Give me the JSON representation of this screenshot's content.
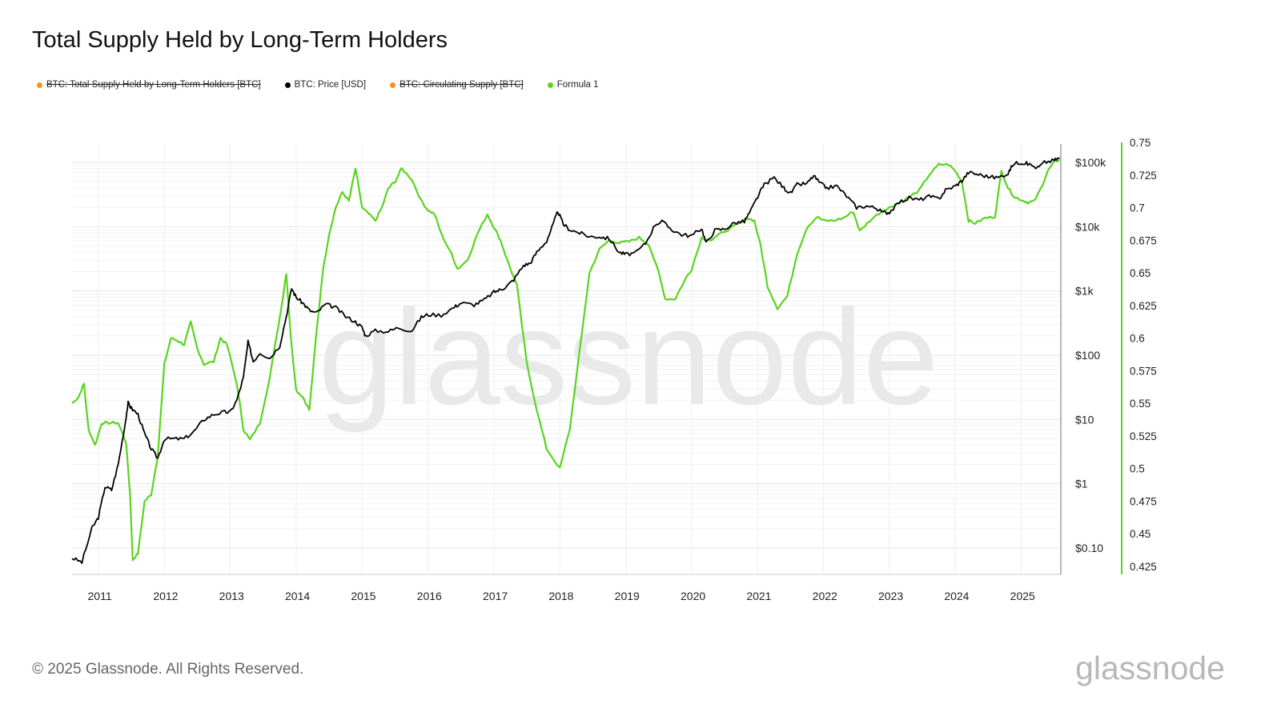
{
  "title": "Total Supply Held by Long-Term Holders",
  "legend": [
    {
      "label": "BTC: Total Supply Held by Long-Term Holders [BTC]",
      "color": "#f7931a",
      "active": false
    },
    {
      "label": "BTC: Price [USD]",
      "color": "#000000",
      "active": true
    },
    {
      "label": "BTC: Circulating Supply [BTC]",
      "color": "#f7931a",
      "active": false
    },
    {
      "label": "Formula 1",
      "color": "#5ad41e",
      "active": true
    }
  ],
  "watermark": "glassnode",
  "footer": "© 2025 Glassnode. All Rights Reserved.",
  "logo": "glassnode",
  "chart_data": {
    "type": "line",
    "title": "Total Supply Held by Long-Term Holders",
    "x_ticks": [
      "2011",
      "2012",
      "2013",
      "2014",
      "2015",
      "2016",
      "2017",
      "2018",
      "2019",
      "2020",
      "2021",
      "2022",
      "2023",
      "2024",
      "2025"
    ],
    "xlim": [
      2010.6,
      2025.6
    ],
    "y_left_scale": "log",
    "y_left_ticks": [
      {
        "value": 100000,
        "label": "$100k"
      },
      {
        "value": 10000,
        "label": "$10k"
      },
      {
        "value": 1000,
        "label": "$1k"
      },
      {
        "value": 100,
        "label": "$100"
      },
      {
        "value": 10,
        "label": "$10"
      },
      {
        "value": 1,
        "label": "$1"
      },
      {
        "value": 0.1,
        "label": "$0.10"
      }
    ],
    "y_right_ticks": [
      "0.75",
      "0.725",
      "0.7",
      "0.675",
      "0.65",
      "0.625",
      "0.6",
      "0.575",
      "0.55",
      "0.525",
      "0.5",
      "0.475",
      "0.45",
      "0.425"
    ],
    "y_right_range": [
      0.425,
      0.75
    ],
    "grid": true,
    "series": [
      {
        "name": "BTC: Price [USD]",
        "axis": "left",
        "color": "#000000",
        "points": [
          [
            2010.6,
            0.07
          ],
          [
            2010.75,
            0.06
          ],
          [
            2010.9,
            0.2
          ],
          [
            2011.0,
            0.3
          ],
          [
            2011.1,
            0.9
          ],
          [
            2011.2,
            0.8
          ],
          [
            2011.3,
            2
          ],
          [
            2011.4,
            8
          ],
          [
            2011.45,
            18
          ],
          [
            2011.5,
            15
          ],
          [
            2011.6,
            12
          ],
          [
            2011.7,
            6
          ],
          [
            2011.8,
            3.5
          ],
          [
            2011.9,
            2.5
          ],
          [
            2012.0,
            5
          ],
          [
            2012.15,
            5
          ],
          [
            2012.3,
            5
          ],
          [
            2012.45,
            6.5
          ],
          [
            2012.6,
            10
          ],
          [
            2012.75,
            12
          ],
          [
            2012.9,
            13
          ],
          [
            2013.0,
            13
          ],
          [
            2013.1,
            20
          ],
          [
            2013.2,
            45
          ],
          [
            2013.27,
            160
          ],
          [
            2013.35,
            80
          ],
          [
            2013.45,
            110
          ],
          [
            2013.6,
            90
          ],
          [
            2013.75,
            140
          ],
          [
            2013.85,
            400
          ],
          [
            2013.93,
            1100
          ],
          [
            2014.0,
            800
          ],
          [
            2014.1,
            650
          ],
          [
            2014.2,
            500
          ],
          [
            2014.3,
            450
          ],
          [
            2014.45,
            620
          ],
          [
            2014.6,
            550
          ],
          [
            2014.75,
            400
          ],
          [
            2014.9,
            330
          ],
          [
            2015.0,
            270
          ],
          [
            2015.05,
            200
          ],
          [
            2015.2,
            240
          ],
          [
            2015.4,
            235
          ],
          [
            2015.55,
            270
          ],
          [
            2015.75,
            240
          ],
          [
            2015.9,
            390
          ],
          [
            2016.0,
            430
          ],
          [
            2016.2,
            420
          ],
          [
            2016.4,
            560
          ],
          [
            2016.5,
            650
          ],
          [
            2016.7,
            610
          ],
          [
            2016.85,
            720
          ],
          [
            2017.0,
            960
          ],
          [
            2017.1,
            1050
          ],
          [
            2017.2,
            1200
          ],
          [
            2017.3,
            1500
          ],
          [
            2017.45,
            2500
          ],
          [
            2017.55,
            2700
          ],
          [
            2017.65,
            4000
          ],
          [
            2017.8,
            6000
          ],
          [
            2017.9,
            11000
          ],
          [
            2017.97,
            17500
          ],
          [
            2018.05,
            11000
          ],
          [
            2018.15,
            9000
          ],
          [
            2018.3,
            8000
          ],
          [
            2018.45,
            7000
          ],
          [
            2018.6,
            7000
          ],
          [
            2018.75,
            6500
          ],
          [
            2018.9,
            4000
          ],
          [
            2019.0,
            3700
          ],
          [
            2019.15,
            3900
          ],
          [
            2019.3,
            5500
          ],
          [
            2019.45,
            11000
          ],
          [
            2019.55,
            12000
          ],
          [
            2019.7,
            9000
          ],
          [
            2019.85,
            7500
          ],
          [
            2020.0,
            7200
          ],
          [
            2020.15,
            9500
          ],
          [
            2020.22,
            5500
          ],
          [
            2020.35,
            8800
          ],
          [
            2020.5,
            9200
          ],
          [
            2020.65,
            11500
          ],
          [
            2020.8,
            12000
          ],
          [
            2020.9,
            18000
          ],
          [
            2021.0,
            29000
          ],
          [
            2021.1,
            45000
          ],
          [
            2021.25,
            58000
          ],
          [
            2021.4,
            40000
          ],
          [
            2021.5,
            33000
          ],
          [
            2021.6,
            45000
          ],
          [
            2021.75,
            47000
          ],
          [
            2021.85,
            62000
          ],
          [
            2021.95,
            47000
          ],
          [
            2022.05,
            40000
          ],
          [
            2022.2,
            43000
          ],
          [
            2022.35,
            30000
          ],
          [
            2022.5,
            20000
          ],
          [
            2022.65,
            21000
          ],
          [
            2022.8,
            19500
          ],
          [
            2022.9,
            16500
          ],
          [
            2023.0,
            16800
          ],
          [
            2023.15,
            24000
          ],
          [
            2023.3,
            28000
          ],
          [
            2023.45,
            26000
          ],
          [
            2023.6,
            29500
          ],
          [
            2023.75,
            27000
          ],
          [
            2023.85,
            37000
          ],
          [
            2024.0,
            43000
          ],
          [
            2024.1,
            52000
          ],
          [
            2024.2,
            70000
          ],
          [
            2024.35,
            65000
          ],
          [
            2024.5,
            60000
          ],
          [
            2024.65,
            58000
          ],
          [
            2024.8,
            68000
          ],
          [
            2024.88,
            95000
          ],
          [
            2025.0,
            100000
          ],
          [
            2025.1,
            95000
          ],
          [
            2025.25,
            82000
          ],
          [
            2025.35,
            100000
          ],
          [
            2025.5,
            108000
          ],
          [
            2025.58,
            118000
          ]
        ]
      },
      {
        "name": "Formula 1",
        "axis": "right",
        "color": "#5ad41e",
        "points": [
          [
            2010.6,
            0.55
          ],
          [
            2010.7,
            0.555
          ],
          [
            2010.78,
            0.565
          ],
          [
            2010.85,
            0.53
          ],
          [
            2010.95,
            0.518
          ],
          [
            2011.05,
            0.535
          ],
          [
            2011.15,
            0.535
          ],
          [
            2011.3,
            0.535
          ],
          [
            2011.42,
            0.52
          ],
          [
            2011.48,
            0.48
          ],
          [
            2011.52,
            0.43
          ],
          [
            2011.6,
            0.435
          ],
          [
            2011.7,
            0.475
          ],
          [
            2011.8,
            0.48
          ],
          [
            2011.9,
            0.51
          ],
          [
            2012.0,
            0.58
          ],
          [
            2012.1,
            0.6
          ],
          [
            2012.2,
            0.598
          ],
          [
            2012.3,
            0.595
          ],
          [
            2012.4,
            0.612
          ],
          [
            2012.5,
            0.592
          ],
          [
            2012.6,
            0.58
          ],
          [
            2012.75,
            0.582
          ],
          [
            2012.85,
            0.6
          ],
          [
            2012.95,
            0.595
          ],
          [
            2013.1,
            0.565
          ],
          [
            2013.2,
            0.53
          ],
          [
            2013.3,
            0.522
          ],
          [
            2013.45,
            0.535
          ],
          [
            2013.6,
            0.57
          ],
          [
            2013.78,
            0.625
          ],
          [
            2013.85,
            0.65
          ],
          [
            2013.92,
            0.6
          ],
          [
            2014.0,
            0.56
          ],
          [
            2014.1,
            0.555
          ],
          [
            2014.2,
            0.545
          ],
          [
            2014.3,
            0.6
          ],
          [
            2014.4,
            0.65
          ],
          [
            2014.5,
            0.68
          ],
          [
            2014.6,
            0.7
          ],
          [
            2014.7,
            0.712
          ],
          [
            2014.8,
            0.705
          ],
          [
            2014.9,
            0.73
          ],
          [
            2015.0,
            0.7
          ],
          [
            2015.1,
            0.695
          ],
          [
            2015.2,
            0.69
          ],
          [
            2015.3,
            0.7
          ],
          [
            2015.4,
            0.715
          ],
          [
            2015.5,
            0.72
          ],
          [
            2015.6,
            0.73
          ],
          [
            2015.75,
            0.722
          ],
          [
            2015.9,
            0.705
          ],
          [
            2016.0,
            0.698
          ],
          [
            2016.1,
            0.695
          ],
          [
            2016.2,
            0.68
          ],
          [
            2016.35,
            0.665
          ],
          [
            2016.45,
            0.653
          ],
          [
            2016.6,
            0.66
          ],
          [
            2016.75,
            0.68
          ],
          [
            2016.9,
            0.695
          ],
          [
            2017.0,
            0.685
          ],
          [
            2017.1,
            0.675
          ],
          [
            2017.2,
            0.66
          ],
          [
            2017.35,
            0.64
          ],
          [
            2017.5,
            0.58
          ],
          [
            2017.65,
            0.545
          ],
          [
            2017.8,
            0.515
          ],
          [
            2018.0,
            0.5
          ],
          [
            2018.15,
            0.53
          ],
          [
            2018.3,
            0.59
          ],
          [
            2018.45,
            0.65
          ],
          [
            2018.6,
            0.668
          ],
          [
            2018.75,
            0.675
          ],
          [
            2018.9,
            0.673
          ],
          [
            2019.05,
            0.674
          ],
          [
            2019.2,
            0.677
          ],
          [
            2019.35,
            0.672
          ],
          [
            2019.5,
            0.65
          ],
          [
            2019.6,
            0.63
          ],
          [
            2019.75,
            0.63
          ],
          [
            2019.9,
            0.645
          ],
          [
            2020.0,
            0.653
          ],
          [
            2020.15,
            0.677
          ],
          [
            2020.3,
            0.675
          ],
          [
            2020.5,
            0.682
          ],
          [
            2020.7,
            0.687
          ],
          [
            2020.85,
            0.692
          ],
          [
            2020.95,
            0.69
          ],
          [
            2021.05,
            0.67
          ],
          [
            2021.15,
            0.64
          ],
          [
            2021.3,
            0.623
          ],
          [
            2021.45,
            0.632
          ],
          [
            2021.6,
            0.665
          ],
          [
            2021.75,
            0.685
          ],
          [
            2021.9,
            0.693
          ],
          [
            2022.0,
            0.69
          ],
          [
            2022.15,
            0.69
          ],
          [
            2022.3,
            0.692
          ],
          [
            2022.45,
            0.697
          ],
          [
            2022.55,
            0.682
          ],
          [
            2022.7,
            0.69
          ],
          [
            2022.9,
            0.698
          ],
          [
            2023.0,
            0.7
          ],
          [
            2023.15,
            0.704
          ],
          [
            2023.3,
            0.708
          ],
          [
            2023.45,
            0.713
          ],
          [
            2023.6,
            0.725
          ],
          [
            2023.75,
            0.733
          ],
          [
            2023.9,
            0.733
          ],
          [
            2024.0,
            0.728
          ],
          [
            2024.1,
            0.72
          ],
          [
            2024.2,
            0.69
          ],
          [
            2024.3,
            0.688
          ],
          [
            2024.45,
            0.692
          ],
          [
            2024.6,
            0.693
          ],
          [
            2024.7,
            0.728
          ],
          [
            2024.8,
            0.715
          ],
          [
            2024.9,
            0.708
          ],
          [
            2025.0,
            0.706
          ],
          [
            2025.1,
            0.704
          ],
          [
            2025.2,
            0.705
          ],
          [
            2025.3,
            0.715
          ],
          [
            2025.4,
            0.728
          ],
          [
            2025.5,
            0.735
          ],
          [
            2025.58,
            0.737
          ]
        ]
      }
    ]
  }
}
